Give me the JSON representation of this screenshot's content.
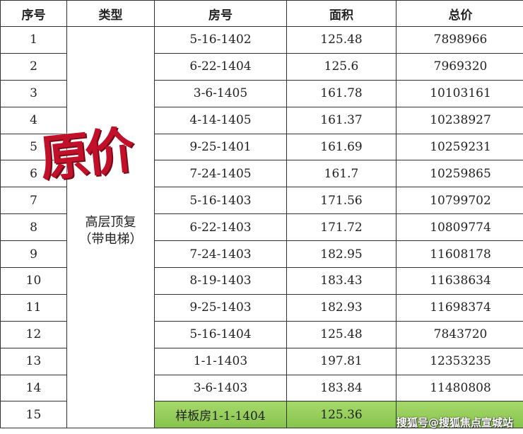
{
  "headers": [
    "序号",
    "类型",
    "房号",
    "面积",
    "总价"
  ],
  "type_label_line1": "高层顶复",
  "type_label_line2": "（带电梯）",
  "stamp": "原价",
  "watermark": "搜狐号@搜狐焦点宣城站",
  "highlight_color": "#8cc850",
  "stamp_color": "#c2102a",
  "rows": [
    {
      "no": "1",
      "room": "5-16-1402",
      "area": "125.48",
      "price": "7898966"
    },
    {
      "no": "2",
      "room": "6-22-1404",
      "area": "125.6",
      "price": "7969320"
    },
    {
      "no": "3",
      "room": "3-6-1405",
      "area": "161.78",
      "price": "10103161"
    },
    {
      "no": "4",
      "room": "4-14-1405",
      "area": "161.37",
      "price": "10238927"
    },
    {
      "no": "5",
      "room": "9-25-1401",
      "area": "161.69",
      "price": "10259231"
    },
    {
      "no": "6",
      "room": "7-24-1405",
      "area": "161.7",
      "price": "10259865"
    },
    {
      "no": "7",
      "room": "5-16-1403",
      "area": "171.56",
      "price": "10799702"
    },
    {
      "no": "8",
      "room": "6-22-1403",
      "area": "171.72",
      "price": "10809774"
    },
    {
      "no": "9",
      "room": "7-24-1403",
      "area": "182.95",
      "price": "11608178"
    },
    {
      "no": "10",
      "room": "8-19-1403",
      "area": "183.43",
      "price": "11638634"
    },
    {
      "no": "11",
      "room": "9-25-1403",
      "area": "182.93",
      "price": "11698374"
    },
    {
      "no": "12",
      "room": "5-16-1404",
      "area": "125.48",
      "price": "7843720"
    },
    {
      "no": "13",
      "room": "1-1-1403",
      "area": "197.81",
      "price": "12353235"
    },
    {
      "no": "14",
      "room": "3-6-1403",
      "area": "183.84",
      "price": "11480808"
    },
    {
      "no": "15",
      "room": "样板房1-1-1404",
      "area": "125.36",
      "price": ""
    }
  ]
}
